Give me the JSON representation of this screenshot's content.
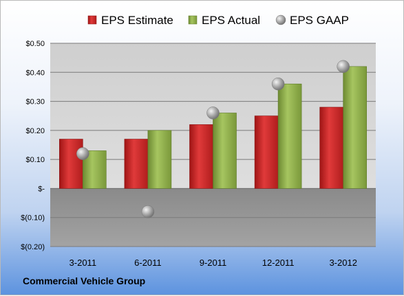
{
  "footer": {
    "company": "Commercial Vehicle Group"
  },
  "chart_data": {
    "type": "bar",
    "categories": [
      "3-2011",
      "6-2011",
      "9-2011",
      "12-2011",
      "3-2012"
    ],
    "series": [
      {
        "name": "EPS Estimate",
        "type": "bar",
        "color": "#cc2a2a",
        "values": [
          0.17,
          0.17,
          0.22,
          0.25,
          0.28
        ]
      },
      {
        "name": "EPS Actual",
        "type": "bar",
        "color": "#8cab47",
        "values": [
          0.13,
          0.2,
          0.26,
          0.36,
          0.42
        ]
      },
      {
        "name": "EPS GAAP",
        "type": "scatter",
        "color": "#a9a9a9",
        "values": [
          0.12,
          -0.08,
          0.26,
          0.36,
          0.42
        ]
      }
    ],
    "ylim": [
      -0.2,
      0.5
    ],
    "yticks": [
      {
        "value": 0.5,
        "label": "$0.50"
      },
      {
        "value": 0.4,
        "label": "$0.40"
      },
      {
        "value": 0.3,
        "label": "$0.30"
      },
      {
        "value": 0.2,
        "label": "$0.20"
      },
      {
        "value": 0.1,
        "label": "$0.10"
      },
      {
        "value": 0.0,
        "label": "$-"
      },
      {
        "value": -0.1,
        "label": "$(0.10)"
      },
      {
        "value": -0.2,
        "label": "$(0.20)"
      }
    ],
    "grid": true,
    "legend": "top"
  }
}
